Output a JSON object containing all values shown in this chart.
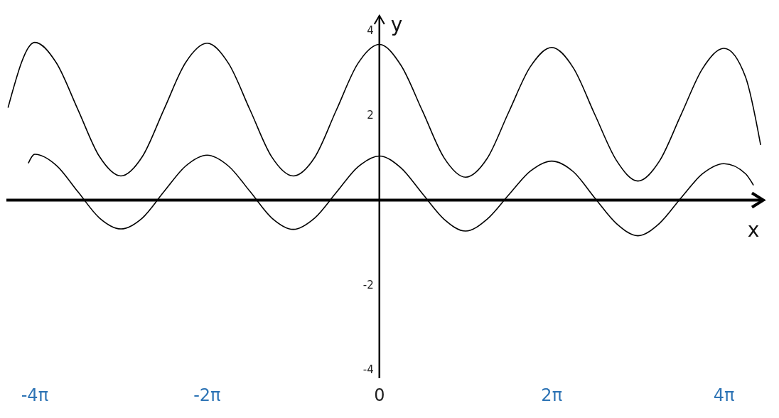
{
  "chart_data": {
    "type": "line",
    "xlabel": "x",
    "ylabel": "y",
    "xlim": [
      -13.6,
      14.0
    ],
    "ylim": [
      -4.2,
      4.35
    ],
    "xticks": [
      {
        "value": -12.566,
        "label": "-4π"
      },
      {
        "value": -6.283,
        "label": "-2π"
      },
      {
        "value": 0,
        "label": "0"
      },
      {
        "value": 6.283,
        "label": "2π"
      },
      {
        "value": 12.566,
        "label": "4π"
      }
    ],
    "yticks": [
      -4,
      -2,
      2,
      4
    ],
    "grid": false,
    "marker": "none",
    "line_style": "solid",
    "ref_lines": [
      {
        "axis": "y",
        "value": 0,
        "color": "#000000"
      }
    ],
    "series": [
      {
        "color": "#000000",
        "x": [
          -13.54,
          -12.566,
          -11.781,
          -10.996,
          -10.21,
          -9.425,
          -8.639,
          -7.854,
          -7.069,
          -6.283,
          -5.498,
          -4.712,
          -3.927,
          -3.142,
          -2.356,
          -1.571,
          -0.785,
          0,
          0.785,
          1.571,
          2.356,
          3.142,
          3.927,
          4.712,
          5.498,
          6.283,
          7.069,
          7.854,
          8.639,
          9.425,
          10.21,
          10.996,
          11.781,
          12.566,
          13.352,
          13.9
        ],
        "values": [
          2.18,
          3.72,
          3.24,
          2.14,
          1.03,
          0.57,
          1.03,
          2.14,
          3.24,
          3.7,
          3.22,
          2.12,
          1.02,
          0.57,
          1.01,
          2.12,
          3.22,
          3.67,
          3.18,
          2.1,
          1.0,
          0.54,
          0.98,
          2.07,
          3.14,
          3.6,
          3.12,
          2.02,
          0.94,
          0.45,
          0.92,
          2.01,
          3.1,
          3.58,
          2.9,
          1.3
        ]
      },
      {
        "color": "#000000",
        "x": [
          -12.8,
          -12.566,
          -11.781,
          -10.996,
          -10.21,
          -9.425,
          -8.639,
          -7.854,
          -7.069,
          -6.283,
          -5.498,
          -4.712,
          -3.927,
          -3.142,
          -2.356,
          -1.571,
          -0.785,
          0,
          0.785,
          1.571,
          2.356,
          3.142,
          3.927,
          4.712,
          5.498,
          6.283,
          7.069,
          7.854,
          8.639,
          9.425,
          10.21,
          10.996,
          11.781,
          12.566,
          13.352,
          13.64
        ],
        "values": [
          0.87,
          1.08,
          0.82,
          0.2,
          -0.42,
          -0.68,
          -0.42,
          0.2,
          0.8,
          1.06,
          0.8,
          0.2,
          -0.42,
          -0.69,
          -0.42,
          0.18,
          0.78,
          1.04,
          0.76,
          0.15,
          -0.45,
          -0.73,
          -0.45,
          0.12,
          0.68,
          0.92,
          0.67,
          0.05,
          -0.55,
          -0.84,
          -0.55,
          0.05,
          0.62,
          0.86,
          0.62,
          0.35
        ]
      }
    ]
  }
}
